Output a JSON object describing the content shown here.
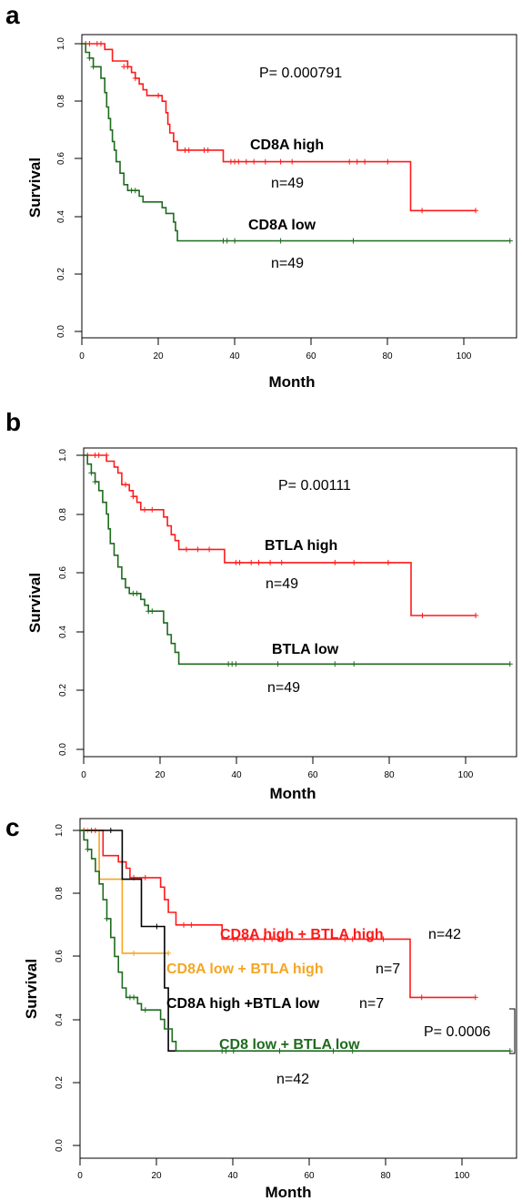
{
  "colors": {
    "high": "#ff1a1a",
    "low": "#1e6b1e",
    "mixed_orange": "#f5a623",
    "mixed_black": "#000000",
    "axis": "#000000"
  },
  "chart_data": [
    {
      "panel": "a",
      "type": "line",
      "title": "",
      "xlabel": "Month",
      "ylabel": "Survival",
      "xlim": [
        0,
        115
      ],
      "ylim": [
        0,
        1.0
      ],
      "xticks": [
        "0",
        "20",
        "40",
        "60",
        "80",
        "100"
      ],
      "yticks": [
        "0.0",
        "0.2",
        "0.4",
        "0.6",
        "0.8",
        "1.0"
      ],
      "pvalue": "P= 0.000791",
      "series": [
        {
          "name": "CD8A high",
          "n_label": "n=49",
          "color": "#ff1a1a",
          "steps": [
            [
              0,
              1.0
            ],
            [
              6,
              0.98
            ],
            [
              8,
              0.94
            ],
            [
              12,
              0.92
            ],
            [
              13,
              0.9
            ],
            [
              14,
              0.88
            ],
            [
              15,
              0.86
            ],
            [
              16,
              0.84
            ],
            [
              17,
              0.82
            ],
            [
              21,
              0.8
            ],
            [
              22,
              0.76
            ],
            [
              22.5,
              0.72
            ],
            [
              23,
              0.69
            ],
            [
              24,
              0.66
            ],
            [
              25,
              0.63
            ],
            [
              37,
              0.59
            ],
            [
              86,
              0.42
            ],
            [
              103,
              0.42
            ]
          ],
          "censored": [
            [
              1,
              1.0
            ],
            [
              2,
              1.0
            ],
            [
              4,
              1.0
            ],
            [
              5,
              1.0
            ],
            [
              11,
              0.92
            ],
            [
              12,
              0.92
            ],
            [
              14,
              0.88
            ],
            [
              20,
              0.82
            ],
            [
              27,
              0.63
            ],
            [
              28,
              0.63
            ],
            [
              32,
              0.63
            ],
            [
              33,
              0.63
            ],
            [
              39,
              0.59
            ],
            [
              40,
              0.59
            ],
            [
              41,
              0.59
            ],
            [
              43,
              0.59
            ],
            [
              45,
              0.59
            ],
            [
              48,
              0.59
            ],
            [
              52,
              0.59
            ],
            [
              55,
              0.59
            ],
            [
              70,
              0.59
            ],
            [
              72,
              0.59
            ],
            [
              74,
              0.59
            ],
            [
              80,
              0.59
            ],
            [
              89,
              0.42
            ],
            [
              103,
              0.42
            ]
          ]
        },
        {
          "name": "CD8A low",
          "n_label": "n=49",
          "color": "#1e6b1e",
          "steps": [
            [
              0,
              1.0
            ],
            [
              1,
              0.97
            ],
            [
              2,
              0.95
            ],
            [
              3,
              0.92
            ],
            [
              5,
              0.88
            ],
            [
              6,
              0.83
            ],
            [
              6.5,
              0.78
            ],
            [
              7,
              0.74
            ],
            [
              7.5,
              0.7
            ],
            [
              8,
              0.66
            ],
            [
              8.5,
              0.63
            ],
            [
              9,
              0.59
            ],
            [
              10,
              0.55
            ],
            [
              11,
              0.51
            ],
            [
              12,
              0.49
            ],
            [
              15,
              0.47
            ],
            [
              16,
              0.45
            ],
            [
              21,
              0.43
            ],
            [
              22,
              0.41
            ],
            [
              24,
              0.38
            ],
            [
              24.5,
              0.35
            ],
            [
              25,
              0.315
            ],
            [
              112,
              0.315
            ]
          ],
          "censored": [
            [
              2,
              0.95
            ],
            [
              3,
              0.92
            ],
            [
              13,
              0.49
            ],
            [
              14,
              0.49
            ],
            [
              37,
              0.315
            ],
            [
              38,
              0.315
            ],
            [
              40,
              0.315
            ],
            [
              52,
              0.315
            ],
            [
              71,
              0.315
            ],
            [
              112,
              0.315
            ]
          ]
        }
      ]
    },
    {
      "panel": "b",
      "type": "line",
      "title": "",
      "xlabel": "Month",
      "ylabel": "Survival",
      "xlim": [
        0,
        115
      ],
      "ylim": [
        0,
        1.0
      ],
      "xticks": [
        "0",
        "20",
        "40",
        "60",
        "80",
        "100"
      ],
      "yticks": [
        "0.0",
        "0.2",
        "0.4",
        "0.6",
        "0.8",
        "1.0"
      ],
      "pvalue": "P= 0.00111",
      "series": [
        {
          "name": "BTLA high",
          "n_label": "n=49",
          "color": "#ff1a1a",
          "steps": [
            [
              0,
              1.0
            ],
            [
              6,
              0.98
            ],
            [
              8,
              0.96
            ],
            [
              9,
              0.94
            ],
            [
              10,
              0.9
            ],
            [
              12,
              0.88
            ],
            [
              13,
              0.86
            ],
            [
              14,
              0.84
            ],
            [
              15,
              0.815
            ],
            [
              21,
              0.79
            ],
            [
              22,
              0.76
            ],
            [
              23,
              0.73
            ],
            [
              24,
              0.71
            ],
            [
              25,
              0.68
            ],
            [
              37,
              0.635
            ],
            [
              86,
              0.455
            ],
            [
              103,
              0.455
            ]
          ],
          "censored": [
            [
              1,
              1.0
            ],
            [
              3,
              1.0
            ],
            [
              4,
              1.0
            ],
            [
              6,
              1.0
            ],
            [
              11,
              0.9
            ],
            [
              13,
              0.86
            ],
            [
              16,
              0.815
            ],
            [
              18,
              0.815
            ],
            [
              27,
              0.68
            ],
            [
              30,
              0.68
            ],
            [
              33,
              0.68
            ],
            [
              40,
              0.635
            ],
            [
              41,
              0.635
            ],
            [
              44,
              0.635
            ],
            [
              46,
              0.635
            ],
            [
              49,
              0.635
            ],
            [
              52,
              0.635
            ],
            [
              66,
              0.635
            ],
            [
              71,
              0.635
            ],
            [
              80,
              0.635
            ],
            [
              89,
              0.455
            ],
            [
              103,
              0.455
            ]
          ]
        },
        {
          "name": "BTLA low",
          "n_label": "n=49",
          "color": "#1e6b1e",
          "steps": [
            [
              0,
              1.0
            ],
            [
              1,
              0.97
            ],
            [
              2,
              0.94
            ],
            [
              3,
              0.91
            ],
            [
              4,
              0.88
            ],
            [
              5,
              0.84
            ],
            [
              6,
              0.8
            ],
            [
              6.5,
              0.75
            ],
            [
              7,
              0.7
            ],
            [
              8,
              0.66
            ],
            [
              9,
              0.62
            ],
            [
              10,
              0.58
            ],
            [
              11,
              0.55
            ],
            [
              12,
              0.53
            ],
            [
              15,
              0.51
            ],
            [
              16,
              0.49
            ],
            [
              17,
              0.47
            ],
            [
              21,
              0.43
            ],
            [
              22,
              0.39
            ],
            [
              23,
              0.36
            ],
            [
              24,
              0.33
            ],
            [
              25,
              0.29
            ],
            [
              112,
              0.29
            ]
          ],
          "censored": [
            [
              2,
              0.94
            ],
            [
              3,
              0.91
            ],
            [
              13,
              0.53
            ],
            [
              14,
              0.53
            ],
            [
              17,
              0.47
            ],
            [
              18,
              0.47
            ],
            [
              38,
              0.29
            ],
            [
              39,
              0.29
            ],
            [
              40,
              0.29
            ],
            [
              51,
              0.29
            ],
            [
              66,
              0.29
            ],
            [
              71,
              0.29
            ],
            [
              112,
              0.29
            ]
          ]
        }
      ]
    },
    {
      "panel": "c",
      "type": "line",
      "title": "",
      "xlabel": "Month",
      "ylabel": "Survival",
      "xlim": [
        0,
        115
      ],
      "ylim": [
        0,
        1.0
      ],
      "xticks": [
        "0",
        "20",
        "40",
        "60",
        "80",
        "100"
      ],
      "yticks": [
        "0.0",
        "0.2",
        "0.4",
        "0.6",
        "0.8",
        "1.0"
      ],
      "pvalue": "P= 0.0006",
      "series": [
        {
          "name": "CD8A high + BTLA high",
          "n_label": "n=42",
          "color": "#ff1a1a",
          "steps": [
            [
              0,
              1.0
            ],
            [
              6,
              0.92
            ],
            [
              10,
              0.9
            ],
            [
              12,
              0.88
            ],
            [
              13,
              0.85
            ],
            [
              21,
              0.82
            ],
            [
              22,
              0.78
            ],
            [
              23,
              0.74
            ],
            [
              25,
              0.7
            ],
            [
              37,
              0.655
            ],
            [
              86,
              0.47
            ],
            [
              103,
              0.47
            ]
          ],
          "censored": [
            [
              1,
              1.0
            ],
            [
              3,
              1.0
            ],
            [
              4,
              1.0
            ],
            [
              11,
              0.9
            ],
            [
              14,
              0.85
            ],
            [
              17,
              0.85
            ],
            [
              27,
              0.7
            ],
            [
              29,
              0.7
            ],
            [
              40,
              0.655
            ],
            [
              41,
              0.655
            ],
            [
              43,
              0.655
            ],
            [
              45,
              0.655
            ],
            [
              48,
              0.655
            ],
            [
              50,
              0.655
            ],
            [
              52,
              0.655
            ],
            [
              69,
              0.655
            ],
            [
              71,
              0.655
            ],
            [
              79,
              0.655
            ],
            [
              89,
              0.47
            ],
            [
              103,
              0.47
            ]
          ]
        },
        {
          "name": "CD8A low + BTLA high",
          "n_label": "n=7",
          "color": "#f5a623",
          "steps": [
            [
              0,
              1.0
            ],
            [
              5,
              0.845
            ],
            [
              11,
              0.61
            ],
            [
              23,
              0.61
            ]
          ],
          "censored": [
            [
              2,
              1.0
            ],
            [
              14,
              0.61
            ],
            [
              23,
              0.61
            ]
          ]
        },
        {
          "name": "CD8A high +BTLA low",
          "n_label": "n=7",
          "color": "#000000",
          "steps": [
            [
              0,
              1.0
            ],
            [
              11,
              0.845
            ],
            [
              16,
              0.695
            ],
            [
              22,
              0.5
            ],
            [
              23,
              0.3
            ],
            [
              25,
              0.3
            ]
          ],
          "censored": [
            [
              8,
              1.0
            ],
            [
              20,
              0.695
            ]
          ]
        },
        {
          "name": "CD8 low + BTLA low",
          "n_label": "n=42",
          "color": "#1e6b1e",
          "steps": [
            [
              0,
              1.0
            ],
            [
              1,
              0.97
            ],
            [
              2,
              0.94
            ],
            [
              3,
              0.91
            ],
            [
              4,
              0.87
            ],
            [
              5,
              0.83
            ],
            [
              6,
              0.78
            ],
            [
              7,
              0.72
            ],
            [
              8,
              0.66
            ],
            [
              9,
              0.6
            ],
            [
              10,
              0.55
            ],
            [
              11,
              0.5
            ],
            [
              12,
              0.47
            ],
            [
              15,
              0.45
            ],
            [
              16,
              0.43
            ],
            [
              21,
              0.4
            ],
            [
              22,
              0.37
            ],
            [
              24,
              0.33
            ],
            [
              25,
              0.3
            ],
            [
              112,
              0.3
            ]
          ],
          "censored": [
            [
              2,
              0.94
            ],
            [
              7,
              0.72
            ],
            [
              13,
              0.47
            ],
            [
              14,
              0.47
            ],
            [
              17,
              0.43
            ],
            [
              37,
              0.3
            ],
            [
              38,
              0.3
            ],
            [
              40,
              0.3
            ],
            [
              52,
              0.3
            ],
            [
              66,
              0.3
            ],
            [
              71,
              0.3
            ],
            [
              112,
              0.3
            ]
          ]
        }
      ]
    }
  ]
}
